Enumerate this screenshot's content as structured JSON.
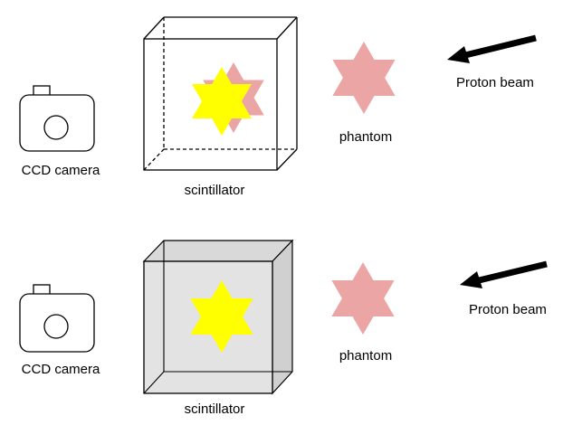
{
  "colors": {
    "star_yellow": "#ffff00",
    "star_pink": "#eba5a5",
    "scintillator_fill": "#e3e3e3",
    "line": "#000000"
  },
  "icons": {
    "camera": "camera-icon",
    "star": "six-pointed-star",
    "arrow": "arrow-left-icon"
  },
  "top_panel": {
    "camera_label": "CCD camera",
    "scintillator_label": "scintillator",
    "phantom_label": "phantom",
    "beam_label": "Proton beam"
  },
  "bottom_panel": {
    "camera_label": "CCD camera",
    "scintillator_label": "scintillator",
    "phantom_label": "phantom",
    "beam_label": "Proton beam"
  }
}
